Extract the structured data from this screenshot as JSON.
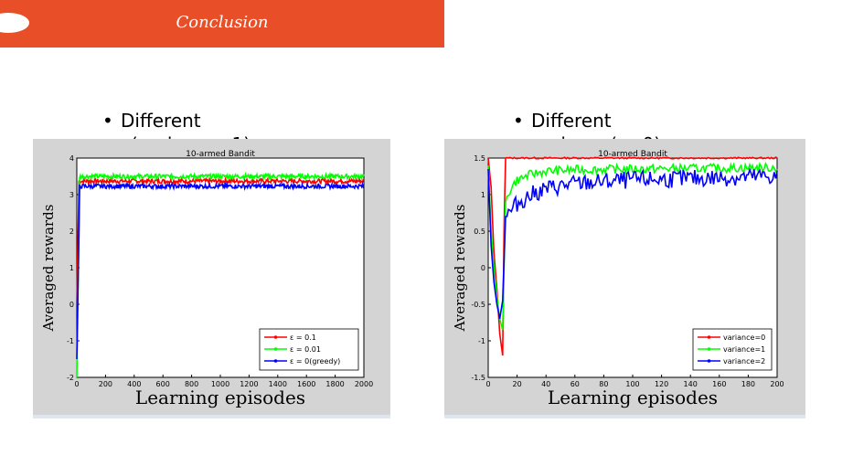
{
  "header": {
    "title": "Conclusion",
    "accent_color": "#e84e27"
  },
  "bullets": [
    {
      "line1": "Different",
      "line2_prefix": "ε",
      "line2_rest": "(variance=1)"
    },
    {
      "line1": "Different",
      "line2_prefix": "",
      "line2_rest": "variance(ε=0)"
    }
  ],
  "chart_data": [
    {
      "type": "line",
      "title": "10-armed Bandit",
      "xlabel": "Learning episodes",
      "ylabel": "Averaged rewards",
      "xlim": [
        0,
        2000
      ],
      "ylim": [
        -2,
        4
      ],
      "xticks": [
        0,
        200,
        400,
        600,
        800,
        1000,
        1200,
        1400,
        1600,
        1800,
        2000
      ],
      "yticks": [
        -2,
        -1,
        0,
        1,
        2,
        3,
        4
      ],
      "legend_position": "lower-right",
      "series": [
        {
          "name": "ε = 0.1",
          "color": "#ff0000",
          "start": 0.0,
          "steady": 3.37,
          "rise_end": 15
        },
        {
          "name": "ε = 0.01",
          "color": "#00ff00",
          "start": -2.0,
          "steady": 3.5,
          "rise_end": 20
        },
        {
          "name": "ε = 0(greedy)",
          "color": "#0000ff",
          "start": -1.5,
          "steady": 3.23,
          "rise_end": 20
        }
      ]
    },
    {
      "type": "line",
      "title": "10-armed Bandit",
      "xlabel": "Learning episodes",
      "ylabel": "Averaged rewards",
      "xlim": [
        0,
        200
      ],
      "ylim": [
        -1.5,
        1.5
      ],
      "xticks": [
        0,
        20,
        40,
        60,
        80,
        100,
        120,
        140,
        160,
        180,
        200
      ],
      "yticks": [
        -1.5,
        -1,
        -0.5,
        0,
        0.5,
        1,
        1.5
      ],
      "legend_position": "lower-right",
      "series": [
        {
          "name": "variance=0",
          "color": "#ff0000",
          "points": [
            [
              0,
              1.5
            ],
            [
              2,
              1.1
            ],
            [
              4,
              0.2
            ],
            [
              6,
              -0.3
            ],
            [
              8,
              -0.9
            ],
            [
              10,
              -1.2
            ],
            [
              11,
              0.6
            ],
            [
              12,
              1.5
            ],
            [
              200,
              1.5
            ]
          ]
        },
        {
          "name": "variance=1",
          "color": "#00ff00",
          "points": [
            [
              0,
              1.4
            ],
            [
              2,
              0.5
            ],
            [
              4,
              0.0
            ],
            [
              6,
              -0.4
            ],
            [
              8,
              -0.7
            ],
            [
              10,
              -0.85
            ],
            [
              12,
              0.9
            ],
            [
              16,
              1.1
            ],
            [
              20,
              1.2
            ],
            [
              30,
              1.28
            ],
            [
              40,
              1.32
            ],
            [
              60,
              1.34
            ],
            [
              100,
              1.35
            ],
            [
              200,
              1.37
            ]
          ]
        },
        {
          "name": "variance=2",
          "color": "#0000ff",
          "points": [
            [
              0,
              1.35
            ],
            [
              2,
              0.3
            ],
            [
              4,
              -0.2
            ],
            [
              6,
              -0.5
            ],
            [
              8,
              -0.7
            ],
            [
              10,
              -0.45
            ],
            [
              12,
              0.7
            ],
            [
              16,
              0.78
            ],
            [
              20,
              0.88
            ],
            [
              30,
              1.0
            ],
            [
              40,
              1.08
            ],
            [
              60,
              1.15
            ],
            [
              100,
              1.2
            ],
            [
              140,
              1.22
            ],
            [
              200,
              1.25
            ]
          ]
        }
      ]
    }
  ]
}
